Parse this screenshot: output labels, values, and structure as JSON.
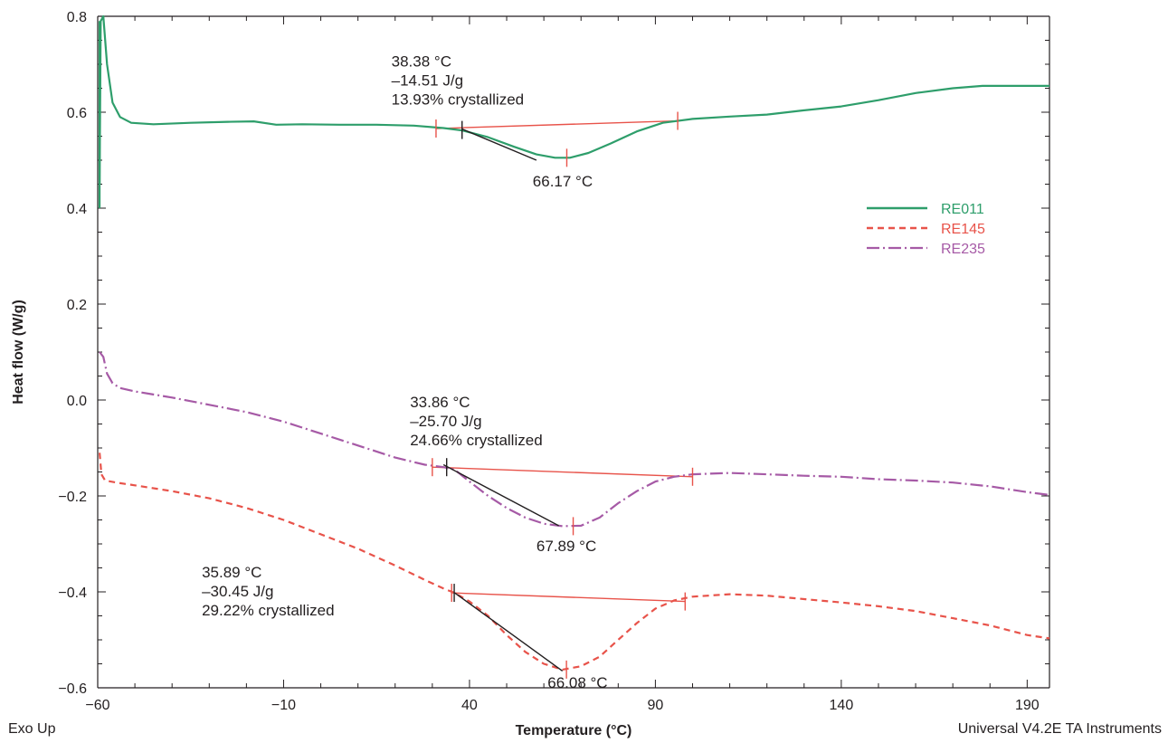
{
  "chart_data": {
    "type": "line",
    "xlabel": "Temperature (°C)",
    "ylabel": "Heat flow (W/g)",
    "xlim": [
      -60,
      196
    ],
    "ylim": [
      -0.6,
      0.8
    ],
    "x_ticks": [
      -60,
      -10,
      40,
      90,
      140,
      190
    ],
    "x_tick_labels": [
      "−60",
      "−10",
      "40",
      "90",
      "140",
      "190"
    ],
    "y_ticks": [
      -0.6,
      -0.4,
      -0.2,
      0.0,
      0.2,
      0.4,
      0.6,
      0.8
    ],
    "y_tick_labels": [
      "−0.6",
      "−0.4",
      "−0.2",
      "0.0",
      "0.2",
      "0.4",
      "0.6",
      "0.8"
    ],
    "grid": false,
    "legend_position": "right",
    "series": [
      {
        "name": "RE011",
        "color": "#2e9e6b",
        "style": "solid",
        "points": [
          [
            -59.5,
            0.45
          ],
          [
            -59.2,
            0.79
          ],
          [
            -58.5,
            0.8
          ],
          [
            -57.5,
            0.7
          ],
          [
            -56,
            0.62
          ],
          [
            -54,
            0.59
          ],
          [
            -51,
            0.578
          ],
          [
            -45,
            0.575
          ],
          [
            -35,
            0.578
          ],
          [
            -25,
            0.58
          ],
          [
            -18,
            0.581
          ],
          [
            -12,
            0.574
          ],
          [
            -5,
            0.575
          ],
          [
            5,
            0.574
          ],
          [
            15,
            0.574
          ],
          [
            25,
            0.572
          ],
          [
            33,
            0.567
          ],
          [
            38,
            0.562
          ],
          [
            45,
            0.548
          ],
          [
            52,
            0.528
          ],
          [
            58,
            0.512
          ],
          [
            63,
            0.505
          ],
          [
            67,
            0.505
          ],
          [
            72,
            0.515
          ],
          [
            78,
            0.535
          ],
          [
            85,
            0.56
          ],
          [
            92,
            0.578
          ],
          [
            100,
            0.586
          ],
          [
            110,
            0.591
          ],
          [
            120,
            0.595
          ],
          [
            130,
            0.604
          ],
          [
            140,
            0.612
          ],
          [
            150,
            0.625
          ],
          [
            160,
            0.64
          ],
          [
            170,
            0.65
          ],
          [
            178,
            0.655
          ],
          [
            185,
            0.655
          ],
          [
            196,
            0.655
          ]
        ]
      },
      {
        "name": "RE145",
        "color": "#e8534a",
        "style": "dashed",
        "points": [
          [
            -59.5,
            -0.11
          ],
          [
            -59,
            -0.155
          ],
          [
            -58,
            -0.168
          ],
          [
            -55,
            -0.172
          ],
          [
            -50,
            -0.178
          ],
          [
            -40,
            -0.19
          ],
          [
            -30,
            -0.205
          ],
          [
            -20,
            -0.225
          ],
          [
            -10,
            -0.25
          ],
          [
            0,
            -0.28
          ],
          [
            10,
            -0.31
          ],
          [
            20,
            -0.345
          ],
          [
            28,
            -0.375
          ],
          [
            33,
            -0.393
          ],
          [
            36,
            -0.402
          ],
          [
            40,
            -0.42
          ],
          [
            45,
            -0.45
          ],
          [
            50,
            -0.49
          ],
          [
            55,
            -0.525
          ],
          [
            60,
            -0.55
          ],
          [
            65,
            -0.562
          ],
          [
            70,
            -0.555
          ],
          [
            75,
            -0.535
          ],
          [
            80,
            -0.5
          ],
          [
            85,
            -0.465
          ],
          [
            90,
            -0.435
          ],
          [
            95,
            -0.418
          ],
          [
            100,
            -0.41
          ],
          [
            110,
            -0.405
          ],
          [
            120,
            -0.408
          ],
          [
            130,
            -0.415
          ],
          [
            140,
            -0.422
          ],
          [
            150,
            -0.43
          ],
          [
            160,
            -0.44
          ],
          [
            170,
            -0.455
          ],
          [
            180,
            -0.47
          ],
          [
            190,
            -0.49
          ],
          [
            196,
            -0.497
          ]
        ]
      },
      {
        "name": "RE235",
        "color": "#a65aa6",
        "style": "dashdot",
        "points": [
          [
            -59.5,
            0.1
          ],
          [
            -58.5,
            0.09
          ],
          [
            -57.5,
            0.055
          ],
          [
            -56,
            0.035
          ],
          [
            -54,
            0.025
          ],
          [
            -50,
            0.018
          ],
          [
            -40,
            0.005
          ],
          [
            -30,
            -0.01
          ],
          [
            -20,
            -0.025
          ],
          [
            -10,
            -0.045
          ],
          [
            0,
            -0.07
          ],
          [
            10,
            -0.095
          ],
          [
            20,
            -0.12
          ],
          [
            28,
            -0.135
          ],
          [
            33,
            -0.14
          ],
          [
            36,
            -0.145
          ],
          [
            40,
            -0.17
          ],
          [
            45,
            -0.2
          ],
          [
            50,
            -0.225
          ],
          [
            55,
            -0.245
          ],
          [
            60,
            -0.258
          ],
          [
            65,
            -0.263
          ],
          [
            70,
            -0.262
          ],
          [
            75,
            -0.245
          ],
          [
            80,
            -0.215
          ],
          [
            85,
            -0.19
          ],
          [
            90,
            -0.17
          ],
          [
            95,
            -0.16
          ],
          [
            100,
            -0.155
          ],
          [
            110,
            -0.152
          ],
          [
            120,
            -0.155
          ],
          [
            130,
            -0.158
          ],
          [
            140,
            -0.16
          ],
          [
            150,
            -0.165
          ],
          [
            160,
            -0.168
          ],
          [
            170,
            -0.172
          ],
          [
            180,
            -0.18
          ],
          [
            190,
            -0.192
          ],
          [
            196,
            -0.198
          ]
        ]
      }
    ],
    "baselines": [
      {
        "color": "#e8534a",
        "x": [
          31,
          96
        ],
        "y": [
          0.566,
          0.582
        ]
      },
      {
        "color": "#e8534a",
        "x": [
          30,
          100
        ],
        "y": [
          -0.14,
          -0.16
        ]
      },
      {
        "color": "#e8534a",
        "x": [
          35,
          98
        ],
        "y": [
          -0.402,
          -0.42
        ]
      }
    ],
    "tangent_lines": [
      {
        "color": "#231f20",
        "x": [
          38,
          58
        ],
        "y": [
          0.565,
          0.5
        ]
      },
      {
        "color": "#231f20",
        "x": [
          33,
          64
        ],
        "y": [
          -0.135,
          -0.262
        ]
      },
      {
        "color": "#231f20",
        "x": [
          36,
          65
        ],
        "y": [
          -0.402,
          -0.565
        ]
      }
    ],
    "markers": [
      {
        "color": "#e8534a",
        "x": 31,
        "y": 0.566
      },
      {
        "color": "#231f20",
        "x": 38,
        "y": 0.563
      },
      {
        "color": "#e8534a",
        "x": 66.17,
        "y": 0.505
      },
      {
        "color": "#e8534a",
        "x": 96,
        "y": 0.582
      },
      {
        "color": "#e8534a",
        "x": 30,
        "y": -0.14
      },
      {
        "color": "#231f20",
        "x": 33.86,
        "y": -0.14
      },
      {
        "color": "#e8534a",
        "x": 67.89,
        "y": -0.263
      },
      {
        "color": "#e8534a",
        "x": 100,
        "y": -0.16
      },
      {
        "color": "#e8534a",
        "x": 35.2,
        "y": -0.402
      },
      {
        "color": "#231f20",
        "x": 35.89,
        "y": -0.402
      },
      {
        "color": "#e8534a",
        "x": 66.08,
        "y": -0.562
      },
      {
        "color": "#e8534a",
        "x": 98,
        "y": -0.42
      }
    ],
    "annotations": [
      {
        "lines": [
          "38.38 °C",
          "–14.51 J/g",
          "13.93% crystallized"
        ],
        "x": 19,
        "y": 0.695
      },
      {
        "lines": [
          "66.17 °C"
        ],
        "x": 57,
        "y": 0.445
      },
      {
        "lines": [
          "33.86 °C",
          "–25.70 J/g",
          "24.66% crystallized"
        ],
        "x": 24,
        "y": -0.015
      },
      {
        "lines": [
          "67.89 °C"
        ],
        "x": 58,
        "y": -0.315
      },
      {
        "lines": [
          "35.89 °C",
          "–30.45 J/g",
          "29.22% crystallized"
        ],
        "x": -32,
        "y": -0.37
      },
      {
        "lines": [
          "66.08 °C"
        ],
        "x": 61,
        "y": -0.6
      }
    ],
    "footer_left": "Exo Up",
    "footer_right": "Universal V4.2E TA Instruments"
  }
}
